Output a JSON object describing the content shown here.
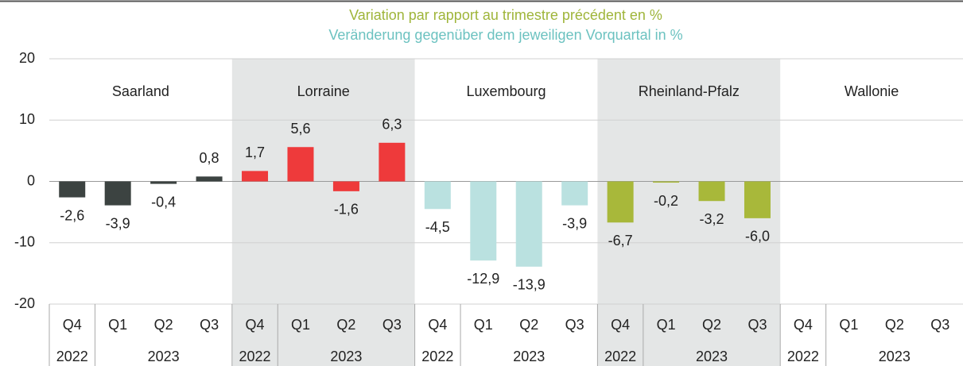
{
  "chart_data": {
    "type": "bar",
    "title": "Variation par rapport au trimestre précédent en %",
    "subtitle": "Veränderung gegenüber dem jeweiligen Vorquartal in %",
    "title_color": "#9fb53a",
    "subtitle_color": "#6cc2c0",
    "quarters": [
      "Q4",
      "Q1",
      "Q2",
      "Q3"
    ],
    "years": [
      "2022",
      "2023"
    ],
    "groups": [
      {
        "name": "Saarland",
        "color": "#3c4341",
        "values": [
          -2.6,
          -3.9,
          -0.4,
          0.8
        ],
        "value_labels": [
          "-2,6",
          "-3,9",
          "-0,4",
          "0,8"
        ]
      },
      {
        "name": "Lorraine",
        "color": "#ee3a3b",
        "values": [
          1.7,
          5.6,
          -1.6,
          6.3
        ],
        "value_labels": [
          "1,7",
          "5,6",
          "-1,6",
          "6,3"
        ]
      },
      {
        "name": "Luxembourg",
        "color": "#bae1e0",
        "values": [
          -4.5,
          -12.9,
          -13.9,
          -3.9
        ],
        "value_labels": [
          "-4,5",
          "-12,9",
          "-13,9",
          "-3,9"
        ]
      },
      {
        "name": "Rheinland-Pfalz",
        "color": "#a8b83a",
        "values": [
          -6.7,
          -0.2,
          -3.2,
          -6.0
        ],
        "value_labels": [
          "-6,7",
          "-0,2",
          "-3,2",
          "-6,0"
        ]
      },
      {
        "name": "Wallonie",
        "color": "#888888",
        "values": [
          null,
          null,
          null,
          null
        ],
        "value_labels": [
          null,
          null,
          null,
          null
        ]
      }
    ],
    "ylim": [
      -20,
      20
    ],
    "yticks": [
      -20,
      -10,
      0,
      10,
      20
    ],
    "grid": true
  }
}
